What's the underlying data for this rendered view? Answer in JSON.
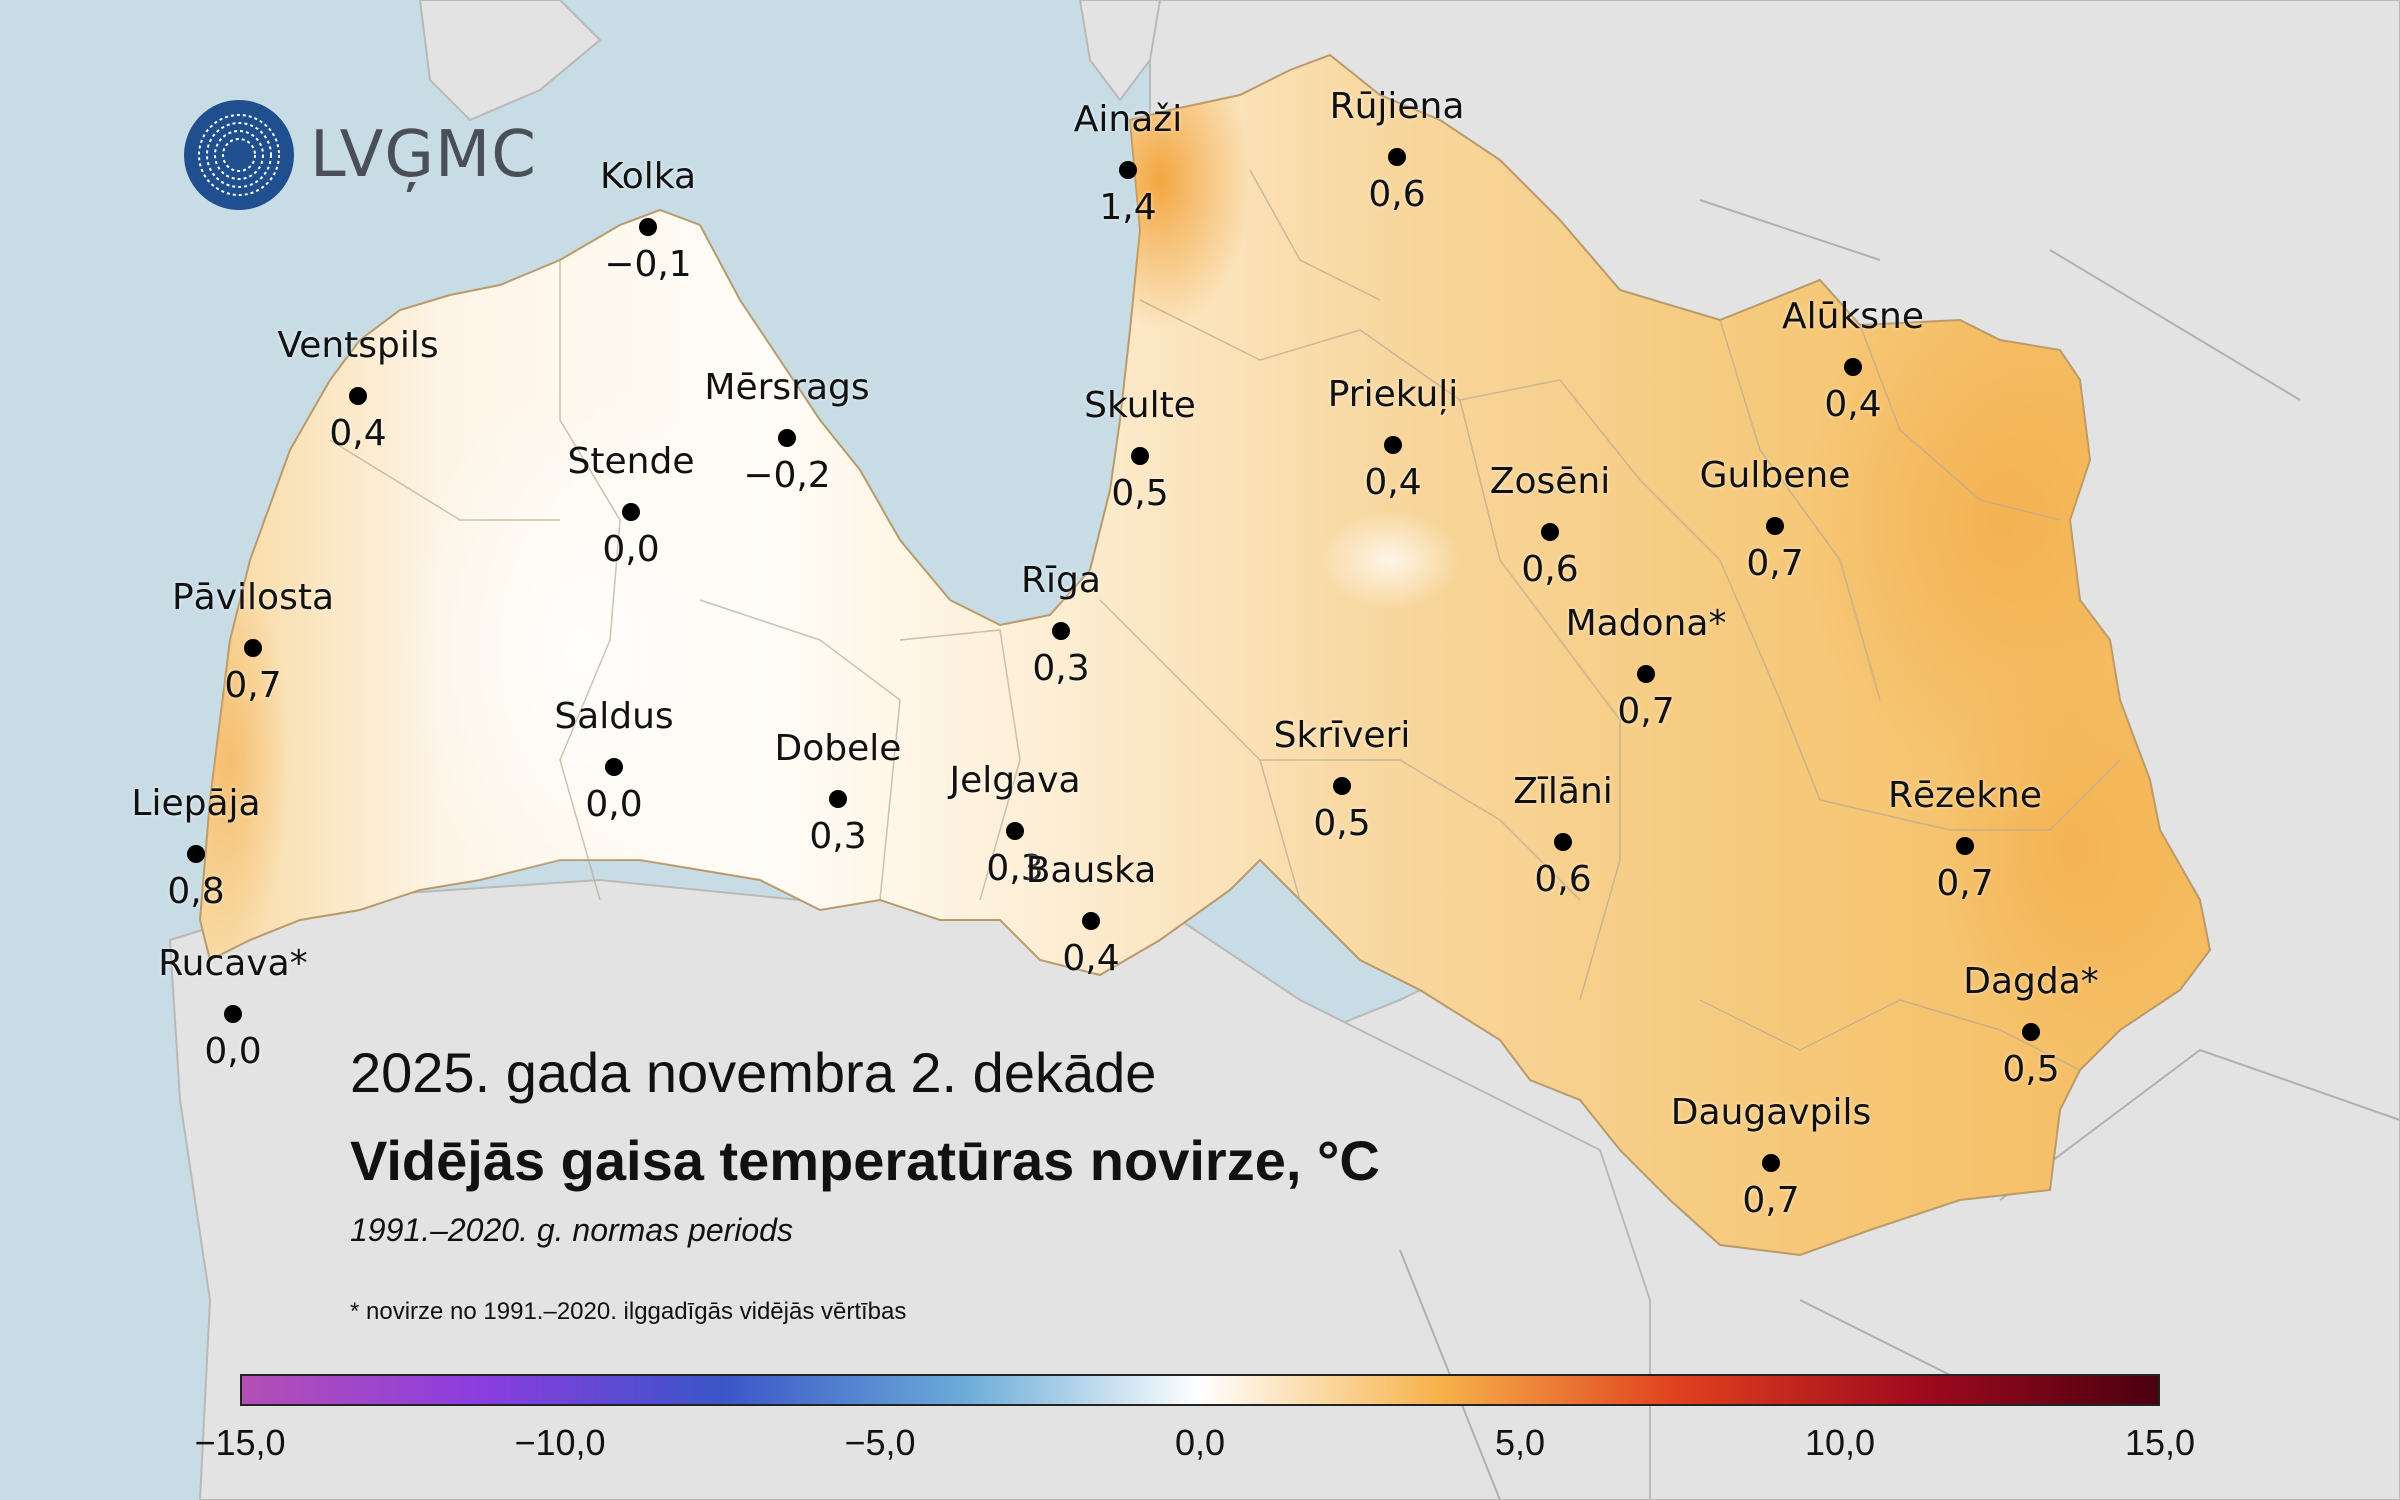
{
  "logo": {
    "text": "LVĢMC"
  },
  "titles": {
    "period": "2025. gada novembra 2. dekāde",
    "main": "Vidējās gaisa temperatūras novirze, °C",
    "norm": "1991.–2020. g. normas periods",
    "footnote": "* novirze no 1991.–2020. ilggadīgās vidējās vērtības"
  },
  "stations": [
    {
      "name": "Kolka",
      "value": "−0,1"
    },
    {
      "name": "Ainaži",
      "value": "1,4"
    },
    {
      "name": "Rūjiena",
      "value": "0,6"
    },
    {
      "name": "Ventspils",
      "value": "0,4"
    },
    {
      "name": "Mērsrags",
      "value": "−0,2"
    },
    {
      "name": "Stende",
      "value": "0,0"
    },
    {
      "name": "Skulte",
      "value": "0,5"
    },
    {
      "name": "Priekuļi",
      "value": "0,4"
    },
    {
      "name": "Alūksne",
      "value": "0,4"
    },
    {
      "name": "Zosēni",
      "value": "0,6"
    },
    {
      "name": "Gulbene",
      "value": "0,7"
    },
    {
      "name": "Pāvilosta",
      "value": "0,7"
    },
    {
      "name": "Rīga",
      "value": "0,3"
    },
    {
      "name": "Madona*",
      "value": "0,7"
    },
    {
      "name": "Saldus",
      "value": "0,0"
    },
    {
      "name": "Dobele",
      "value": "0,3"
    },
    {
      "name": "Jelgava",
      "value": "0,3"
    },
    {
      "name": "Skrīveri",
      "value": "0,5"
    },
    {
      "name": "Zīlāni",
      "value": "0,6"
    },
    {
      "name": "Rēzekne",
      "value": "0,7"
    },
    {
      "name": "Liepāja",
      "value": "0,8"
    },
    {
      "name": "Bauska",
      "value": "0,4"
    },
    {
      "name": "Rucava*",
      "value": "0,0"
    },
    {
      "name": "Dagda*",
      "value": "0,5"
    },
    {
      "name": "Daugavpils",
      "value": "0,7"
    }
  ],
  "colorbar": {
    "ticks": [
      "−15,0",
      "−10,0",
      "−5,0",
      "0,0",
      "5,0",
      "10,0",
      "15,0"
    ],
    "colors": [
      "#b44fb4",
      "#8b3de0",
      "#3a55c8",
      "#6aaad8",
      "#ffffff",
      "#f7b24a",
      "#e0401e",
      "#a00a1e",
      "#4a0010"
    ]
  },
  "map_colors": {
    "sea": "#c8dce6",
    "land_outside": "#e3e3e3",
    "latvia_base": "#f6d49a",
    "warm_east": "#f5b95a",
    "neutral_west": "#fdf6ea"
  }
}
